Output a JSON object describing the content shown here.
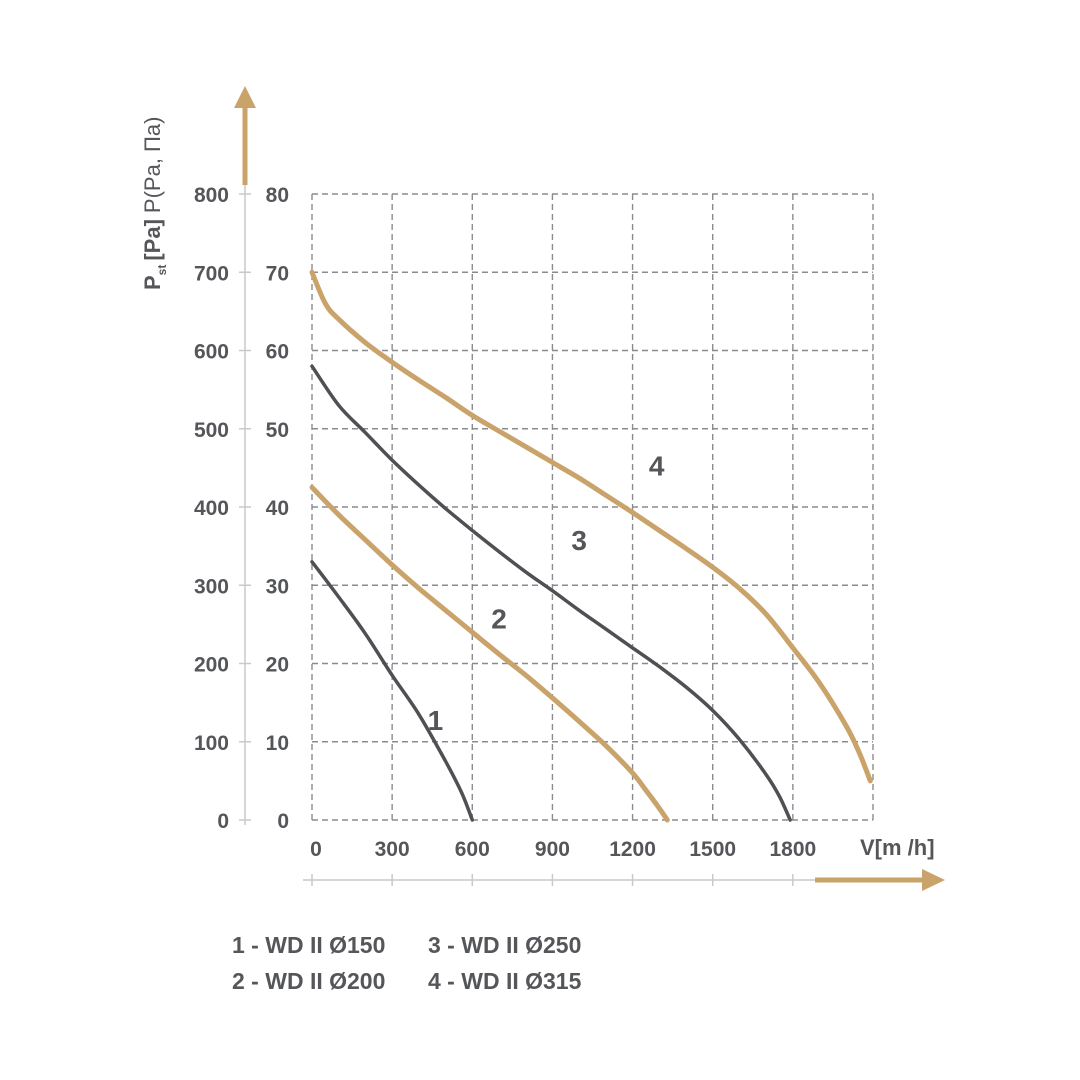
{
  "chart_data": {
    "type": "line",
    "y_axis_label_prefix": "P",
    "y_axis_label_subscript": "st",
    "y_axis_label_unit": "[Pa]",
    "y_axis_label_rest": "P(Pa, Па)",
    "x_axis_label": "V[m /h]",
    "y_ticks_outer": [
      "0",
      "100",
      "200",
      "300",
      "400",
      "500",
      "600",
      "700",
      "800"
    ],
    "y_ticks_inner": [
      "0",
      "10",
      "20",
      "30",
      "40",
      "50",
      "60",
      "70",
      "80"
    ],
    "x_ticks": [
      "0",
      "300",
      "600",
      "900",
      "1200",
      "1500",
      "1800"
    ],
    "xlim": [
      0,
      2100
    ],
    "ylim": [
      0,
      800
    ],
    "grid": true,
    "colors": {
      "gold": "#c9a36a",
      "dark": "#4f5054",
      "grid": "#8a8b8f",
      "text": "#55565a"
    },
    "series": [
      {
        "label": "1",
        "color": "dark",
        "label_at": [
          462,
          115
        ],
        "x": [
          0,
          100,
          200,
          300,
          400,
          500,
          560,
          600
        ],
        "y": [
          330,
          285,
          238,
          185,
          135,
          75,
          35,
          0
        ]
      },
      {
        "label": "2",
        "color": "gold",
        "label_at": [
          700,
          245
        ],
        "x": [
          0,
          100,
          200,
          300,
          400,
          500,
          600,
          700,
          800,
          900,
          1000,
          1100,
          1200,
          1250,
          1300,
          1330
        ],
        "y": [
          425,
          390,
          358,
          326,
          296,
          268,
          240,
          212,
          185,
          156,
          126,
          95,
          60,
          38,
          15,
          0
        ]
      },
      {
        "label": "3",
        "color": "dark",
        "label_at": [
          1000,
          345
        ],
        "x": [
          0,
          100,
          200,
          300,
          400,
          500,
          600,
          700,
          800,
          900,
          1000,
          1100,
          1200,
          1300,
          1400,
          1500,
          1600,
          1700,
          1750,
          1790
        ],
        "y": [
          580,
          530,
          495,
          460,
          428,
          398,
          370,
          343,
          317,
          293,
          268,
          244,
          220,
          196,
          170,
          140,
          103,
          58,
          30,
          0
        ]
      },
      {
        "label": "4",
        "color": "gold",
        "label_at": [
          1290,
          440
        ],
        "x": [
          0,
          50,
          100,
          200,
          300,
          400,
          500,
          600,
          700,
          800,
          900,
          1000,
          1100,
          1200,
          1300,
          1400,
          1500,
          1600,
          1700,
          1800,
          1900,
          2000,
          2050,
          2090
        ],
        "y": [
          700,
          660,
          640,
          610,
          585,
          562,
          540,
          517,
          497,
          477,
          457,
          437,
          415,
          393,
          370,
          347,
          323,
          296,
          263,
          220,
          175,
          120,
          85,
          50
        ]
      }
    ]
  },
  "legend": {
    "items": [
      "1 - WD II Ø150",
      "2 - WD II Ø200",
      "3 - WD II Ø250",
      "4 - WD II Ø315"
    ]
  }
}
